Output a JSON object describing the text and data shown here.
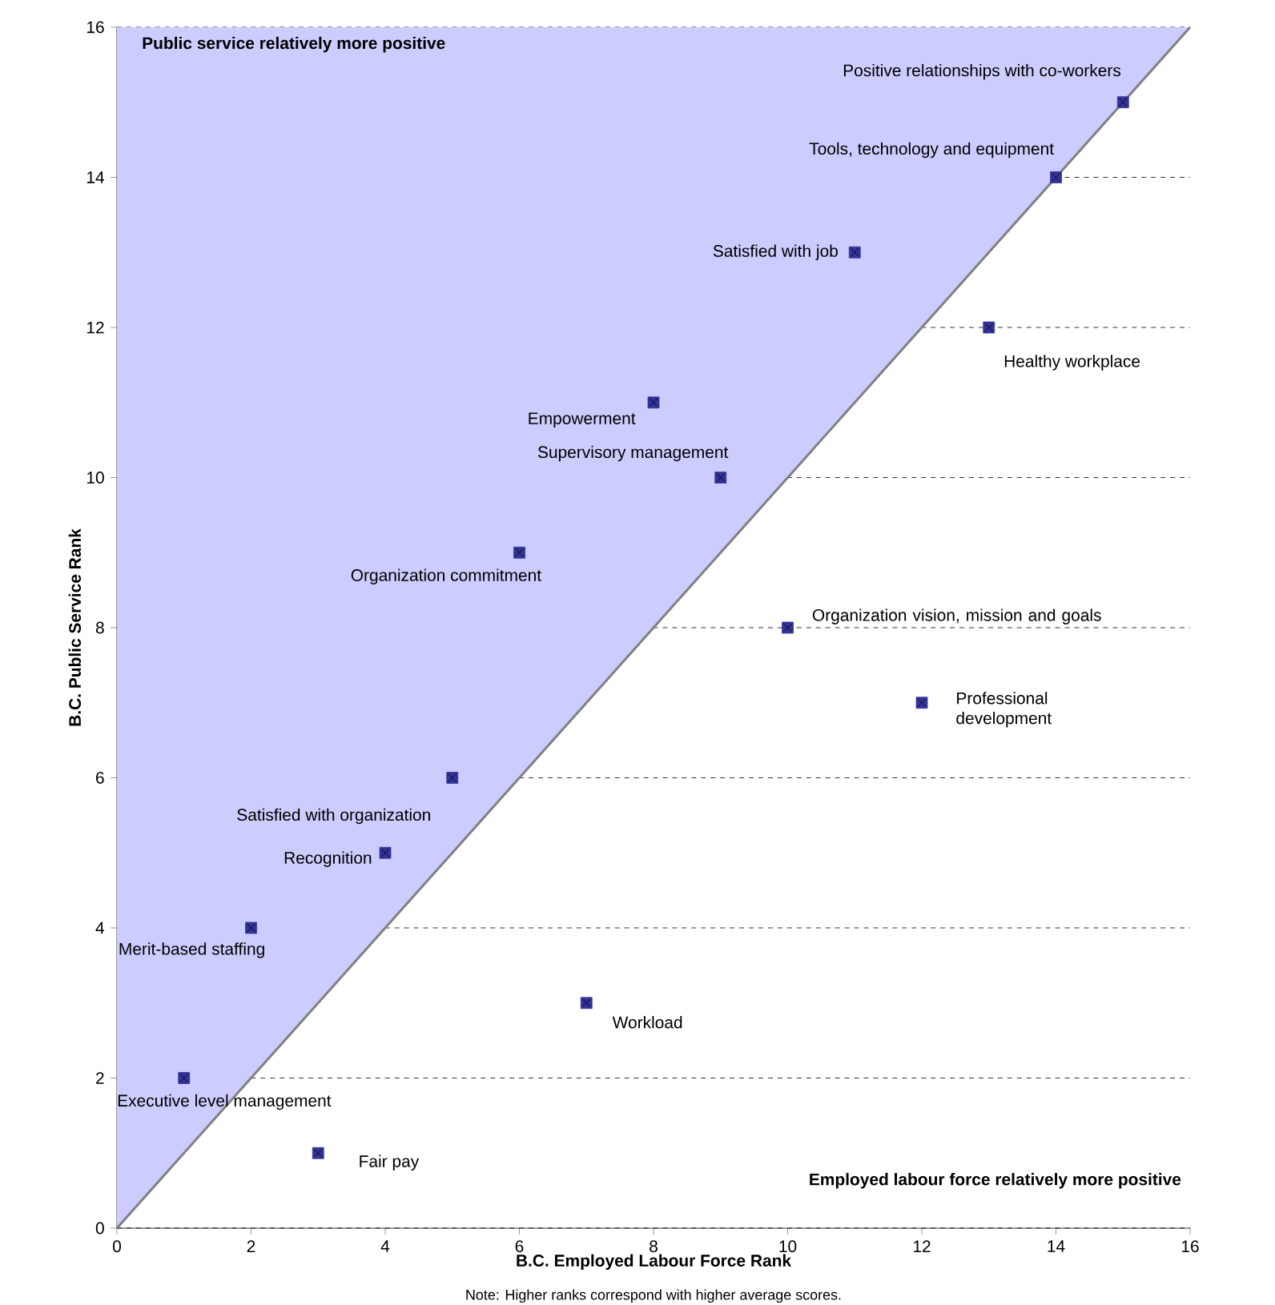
{
  "chart_data": {
    "type": "scatter",
    "xlabel": "B.C. Employed Labour Force Rank",
    "ylabel": "B.C. Public Service Rank",
    "xlim": [
      0,
      16
    ],
    "ylim": [
      0,
      16
    ],
    "xticks": [
      0,
      2,
      4,
      6,
      8,
      10,
      12,
      14,
      16
    ],
    "yticks": [
      0,
      2,
      4,
      6,
      8,
      10,
      12,
      14,
      16
    ],
    "grid": "y",
    "series": [
      {
        "color": "#333399",
        "x": [
          1,
          2,
          3,
          4,
          5,
          6,
          7,
          8,
          9,
          10,
          11,
          12,
          13,
          14,
          15
        ],
        "values": [
          2,
          4,
          1,
          5,
          6,
          9,
          3,
          11,
          10,
          8,
          13,
          7,
          12,
          14,
          15
        ]
      },
      {
        "type": "line",
        "color": "#808080",
        "x": [
          0,
          16
        ],
        "values": [
          0,
          16
        ],
        "lower": [
          0,
          16
        ],
        "upper": [
          16,
          16
        ]
      }
    ],
    "annotations": [
      "Public service relatively more positive",
      "Employed labour force relatively more positive",
      "Note: Higher ranks correspond with higher average scores.",
      {
        "text": "Executive level management",
        "x": 1,
        "y": 2
      },
      {
        "text": "Merit-based staffing",
        "x": 2,
        "y": 4
      },
      {
        "text": "Fair pay",
        "x": 3,
        "y": 1
      },
      {
        "text": "Recognition",
        "x": 4,
        "y": 5
      },
      {
        "text": "Satisfied with organization",
        "x": 5,
        "y": 6
      },
      {
        "text": "Organization commitment",
        "x": 6,
        "y": 9
      },
      {
        "text": "Workload",
        "x": 7,
        "y": 3
      },
      {
        "text": "Empowerment",
        "x": 8,
        "y": 11
      },
      {
        "text": "Supervisory management",
        "x": 9,
        "y": 10
      },
      {
        "text": "Organization vision, mission and goals",
        "x": 10,
        "y": 8
      },
      {
        "text": "Satisfied with job",
        "x": 11,
        "y": 13
      },
      {
        "text": "Professional development",
        "x": 12,
        "y": 7
      },
      {
        "text": "Healthy workplace",
        "x": 13,
        "y": 12
      },
      {
        "text": "Tools, technology and equipment",
        "x": 14,
        "y": 14
      },
      {
        "text": "Positive relationships with co-workers",
        "x": 15,
        "y": 15
      }
    ]
  }
}
